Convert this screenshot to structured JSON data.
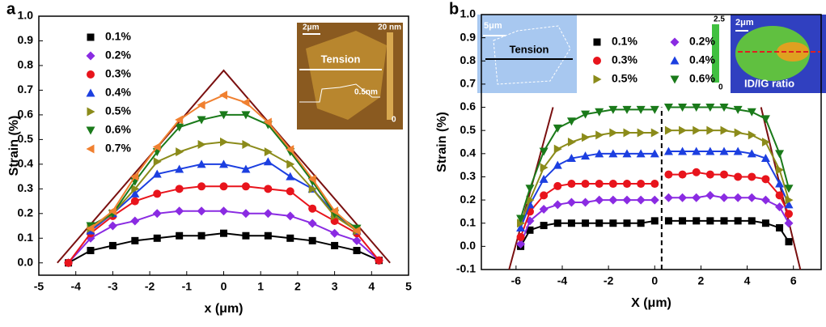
{
  "chart_data": [
    {
      "type": "scatter",
      "panel_label": "a",
      "x_label": "x (μm)",
      "y_label": "Strain (%)",
      "xlim": [
        -5.0,
        5.0
      ],
      "ylim": [
        -0.05,
        1.0
      ],
      "xticks": [
        -5,
        -4,
        -3,
        -2,
        -1,
        0,
        1,
        2,
        3,
        4,
        5
      ],
      "yticks": [
        {
          "value": 0,
          "label": "0.0"
        },
        0.1,
        0.2,
        0.3,
        0.4,
        0.5,
        0.6,
        0.7,
        0.8,
        0.9,
        {
          "value": 1,
          "label": "1.0"
        }
      ],
      "series": [
        {
          "name": "0.1%",
          "color": "#000000",
          "marker": "square",
          "x": [
            -4.2,
            -3.6,
            -3.0,
            -2.4,
            -1.8,
            -1.2,
            -0.6,
            0,
            0.6,
            1.2,
            1.8,
            2.4,
            3.0,
            3.6,
            4.2
          ],
          "values": [
            0.0,
            0.05,
            0.07,
            0.09,
            0.1,
            0.11,
            0.11,
            0.12,
            0.11,
            0.11,
            0.1,
            0.09,
            0.07,
            0.05,
            0.01
          ]
        },
        {
          "name": "0.2%",
          "color": "#8a2be2",
          "marker": "diamond",
          "x": [
            -4.2,
            -3.6,
            -3.0,
            -2.4,
            -1.8,
            -1.2,
            -0.6,
            0,
            0.6,
            1.2,
            1.8,
            2.4,
            3.0,
            3.6,
            4.2
          ],
          "values": [
            0.0,
            0.1,
            0.15,
            0.17,
            0.2,
            0.21,
            0.21,
            0.21,
            0.2,
            0.2,
            0.19,
            0.16,
            0.12,
            0.09,
            0.01
          ]
        },
        {
          "name": "0.3%",
          "color": "#e8141c",
          "marker": "circle",
          "x": [
            -4.2,
            -3.6,
            -3.0,
            -2.4,
            -1.8,
            -1.2,
            -0.6,
            0,
            0.6,
            1.2,
            1.8,
            2.4,
            3.0,
            3.6,
            4.2
          ],
          "values": [
            0.0,
            0.12,
            0.19,
            0.25,
            0.28,
            0.3,
            0.31,
            0.31,
            0.31,
            0.3,
            0.29,
            0.22,
            0.17,
            0.12,
            0.01
          ]
        },
        {
          "name": "0.4%",
          "color": "#1c3fe0",
          "marker": "tri-up",
          "x": [
            -3.6,
            -3.0,
            -2.4,
            -1.8,
            -1.2,
            -0.6,
            0,
            0.6,
            1.2,
            1.8,
            2.4,
            3.0,
            3.6
          ],
          "values": [
            0.13,
            0.2,
            0.28,
            0.36,
            0.38,
            0.4,
            0.4,
            0.38,
            0.41,
            0.35,
            0.3,
            0.2,
            0.13
          ]
        },
        {
          "name": "0.5%",
          "color": "#8b8b1a",
          "marker": "tri-right",
          "x": [
            -3.6,
            -3.0,
            -2.4,
            -1.8,
            -1.2,
            -0.6,
            0,
            0.6,
            1.2,
            1.8,
            2.4,
            3.0,
            3.6
          ],
          "values": [
            0.14,
            0.2,
            0.3,
            0.41,
            0.45,
            0.48,
            0.49,
            0.48,
            0.45,
            0.4,
            0.3,
            0.19,
            0.13
          ]
        },
        {
          "name": "0.6%",
          "color": "#1a7a1a",
          "marker": "tri-down",
          "x": [
            -3.6,
            -3.0,
            -2.4,
            -1.8,
            -1.2,
            -0.6,
            0,
            0.6,
            1.2,
            1.8,
            2.4,
            3.0,
            3.6
          ],
          "values": [
            0.15,
            0.2,
            0.33,
            0.45,
            0.55,
            0.58,
            0.6,
            0.6,
            0.56,
            0.45,
            0.33,
            0.2,
            0.14
          ]
        },
        {
          "name": "0.7%",
          "color": "#f08030",
          "marker": "tri-left",
          "x": [
            -3.6,
            -3.0,
            -2.4,
            -1.8,
            -1.2,
            -0.6,
            0,
            0.6,
            1.2,
            1.8,
            2.4,
            3.0,
            3.6
          ],
          "values": [
            0.14,
            0.21,
            0.35,
            0.47,
            0.58,
            0.64,
            0.68,
            0.65,
            0.57,
            0.46,
            0.34,
            0.21,
            0.13
          ]
        }
      ],
      "guide_lines": [
        {
          "color": "#7a1010",
          "x": [
            -4.5,
            0,
            4.5
          ],
          "values": [
            0,
            0.78,
            0
          ]
        }
      ],
      "inset": {
        "scale_bar": "2μm",
        "colorbar_max": "20 nm",
        "colorbar_min": "0",
        "label": "Tension",
        "height": "0.5nm"
      }
    },
    {
      "type": "scatter",
      "panel_label": "b",
      "x_label": "X (μm)",
      "y_label": "Strain (%)",
      "xlim": [
        -7.5,
        7.2
      ],
      "ylim": [
        -0.1,
        1.0
      ],
      "xticks": [
        -6,
        -4,
        -2,
        0,
        2,
        4,
        6
      ],
      "yticks": [
        -0.1,
        {
          "value": 0,
          "label": "0.0"
        },
        0.1,
        0.2,
        0.3,
        0.4,
        0.5,
        0.6,
        0.7,
        0.8,
        0.9,
        {
          "value": 1,
          "label": "1.0"
        }
      ],
      "x": [
        -5.8,
        -5.4,
        -4.8,
        -4.2,
        -3.6,
        -3.0,
        -2.4,
        -1.8,
        -1.2,
        -0.6,
        0,
        0.3,
        0.6,
        1.2,
        1.8,
        2.4,
        3.0,
        3.6,
        4.2,
        4.8,
        5.4,
        5.8
      ],
      "series": [
        {
          "name": "0.1%",
          "color": "#000000",
          "marker": "square",
          "values": [
            0.0,
            0.07,
            0.09,
            0.1,
            0.1,
            0.1,
            0.1,
            0.1,
            0.1,
            0.1,
            0.11,
            null,
            0.11,
            0.11,
            0.11,
            0.11,
            0.11,
            0.11,
            0.11,
            0.1,
            0.08,
            0.02
          ]
        },
        {
          "name": "0.2%",
          "color": "#8a2be2",
          "marker": "diamond",
          "values": [
            0.01,
            0.11,
            0.16,
            0.18,
            0.19,
            0.19,
            0.2,
            0.2,
            0.2,
            0.2,
            0.2,
            null,
            0.21,
            0.21,
            0.21,
            0.22,
            0.21,
            0.21,
            0.21,
            0.2,
            0.17,
            0.1
          ]
        },
        {
          "name": "0.3%",
          "color": "#e8141c",
          "marker": "circle",
          "values": [
            0.04,
            0.15,
            0.22,
            0.26,
            0.27,
            0.27,
            0.27,
            0.27,
            0.27,
            0.27,
            0.27,
            null,
            0.31,
            0.31,
            0.32,
            0.31,
            0.31,
            0.3,
            0.3,
            0.29,
            0.22,
            0.14
          ]
        },
        {
          "name": "0.4%",
          "color": "#1c3fe0",
          "marker": "tri-up",
          "values": [
            0.08,
            0.18,
            0.29,
            0.35,
            0.38,
            0.39,
            0.4,
            0.4,
            0.4,
            0.4,
            0.4,
            null,
            0.41,
            0.41,
            0.41,
            0.41,
            0.41,
            0.41,
            0.4,
            0.38,
            0.27,
            0.18
          ]
        },
        {
          "name": "0.5%",
          "color": "#8b8b1a",
          "marker": "tri-right",
          "values": [
            0.1,
            0.2,
            0.34,
            0.42,
            0.45,
            0.47,
            0.48,
            0.49,
            0.49,
            0.49,
            0.49,
            null,
            0.5,
            0.5,
            0.5,
            0.5,
            0.5,
            0.49,
            0.48,
            0.45,
            0.33,
            0.2
          ]
        },
        {
          "name": "0.6%",
          "color": "#1a7a1a",
          "marker": "tri-down",
          "values": [
            0.12,
            0.25,
            0.41,
            0.51,
            0.54,
            0.57,
            0.58,
            0.59,
            0.59,
            0.59,
            0.59,
            null,
            0.6,
            0.6,
            0.6,
            0.6,
            0.6,
            0.59,
            0.58,
            0.55,
            0.4,
            0.25
          ]
        }
      ],
      "guide_lines": [
        {
          "color": "#7a1010",
          "x": [
            -6.3,
            -4.4
          ],
          "values": [
            -0.1,
            0.6
          ]
        },
        {
          "color": "#7a1010",
          "x": [
            4.6,
            6.3
          ],
          "values": [
            0.6,
            -0.1
          ]
        },
        {
          "color": "#000000",
          "dash": true,
          "x": [
            0.3,
            0.3
          ],
          "values": [
            -0.1,
            0.6
          ]
        }
      ],
      "inset": {
        "scale_bar": "5μm",
        "label": "Tension",
        "map_scale_bar": "2μm",
        "colorbar_max": "2.5",
        "colorbar_min": "0",
        "map_label": "ID/IG ratio"
      }
    }
  ]
}
